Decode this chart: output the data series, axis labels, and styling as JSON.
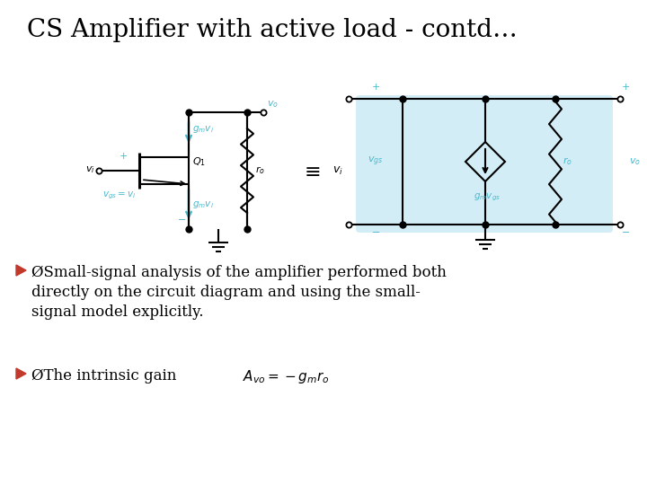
{
  "title": "CS Amplifier with active load - contd…",
  "title_fontsize": 20,
  "title_color": "#000000",
  "bg_color": "#ffffff",
  "bullet_color": "#c0392b",
  "text_color": "#000000",
  "circuit_color": "#000000",
  "cyan_color": "#4ab8cc",
  "light_blue_bg": "#c5e8f5",
  "bullet1_line1": "ØSmall-signal analysis of the amplifier performed both",
  "bullet1_line2": "directly on the circuit diagram and using the small-",
  "bullet1_line3": "signal model explicitly.",
  "bullet2_text": "ØThe intrinsic gain",
  "formula": "$A_{vo} = -g_m r_o$"
}
